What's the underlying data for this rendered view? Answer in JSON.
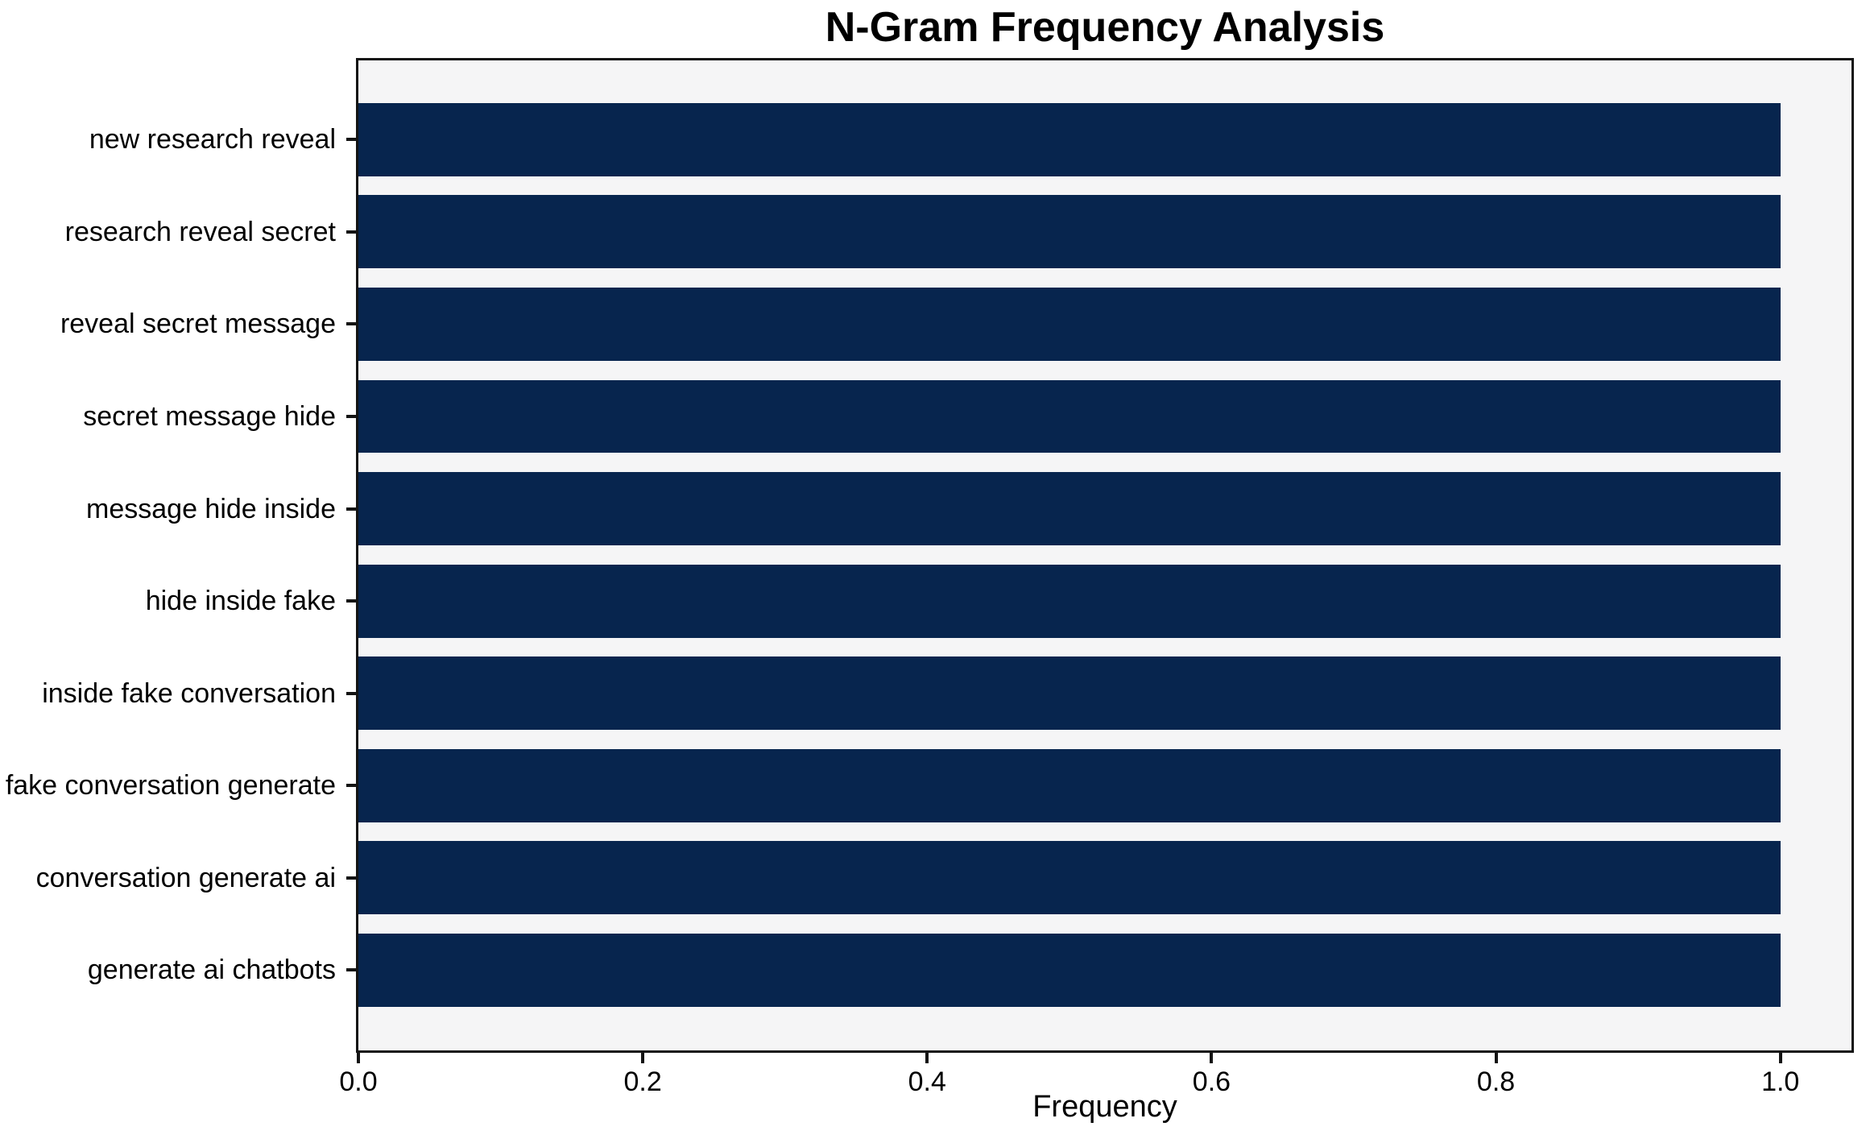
{
  "chart_data": {
    "type": "bar",
    "orientation": "horizontal",
    "title": "N-Gram Frequency Analysis",
    "xlabel": "Frequency",
    "ylabel": "",
    "categories": [
      "new research reveal",
      "research reveal secret",
      "reveal secret message",
      "secret message hide",
      "message hide inside",
      "hide inside fake",
      "inside fake conversation",
      "fake conversation generate",
      "conversation generate ai",
      "generate ai chatbots"
    ],
    "values": [
      1.0,
      1.0,
      1.0,
      1.0,
      1.0,
      1.0,
      1.0,
      1.0,
      1.0,
      1.0
    ],
    "xlim": [
      0,
      1.05
    ],
    "x_tick_values": [
      0.0,
      0.2,
      0.4,
      0.6,
      0.8,
      1.0
    ],
    "x_tick_labels": [
      "0.0",
      "0.2",
      "0.4",
      "0.6",
      "0.8",
      "1.0"
    ],
    "grid": false,
    "legend": null,
    "colors": {
      "bar": "#07254e",
      "plot_background": "#f5f5f6",
      "figure_background": "#ffffff",
      "spine": "#141414",
      "text": "#000000"
    }
  }
}
